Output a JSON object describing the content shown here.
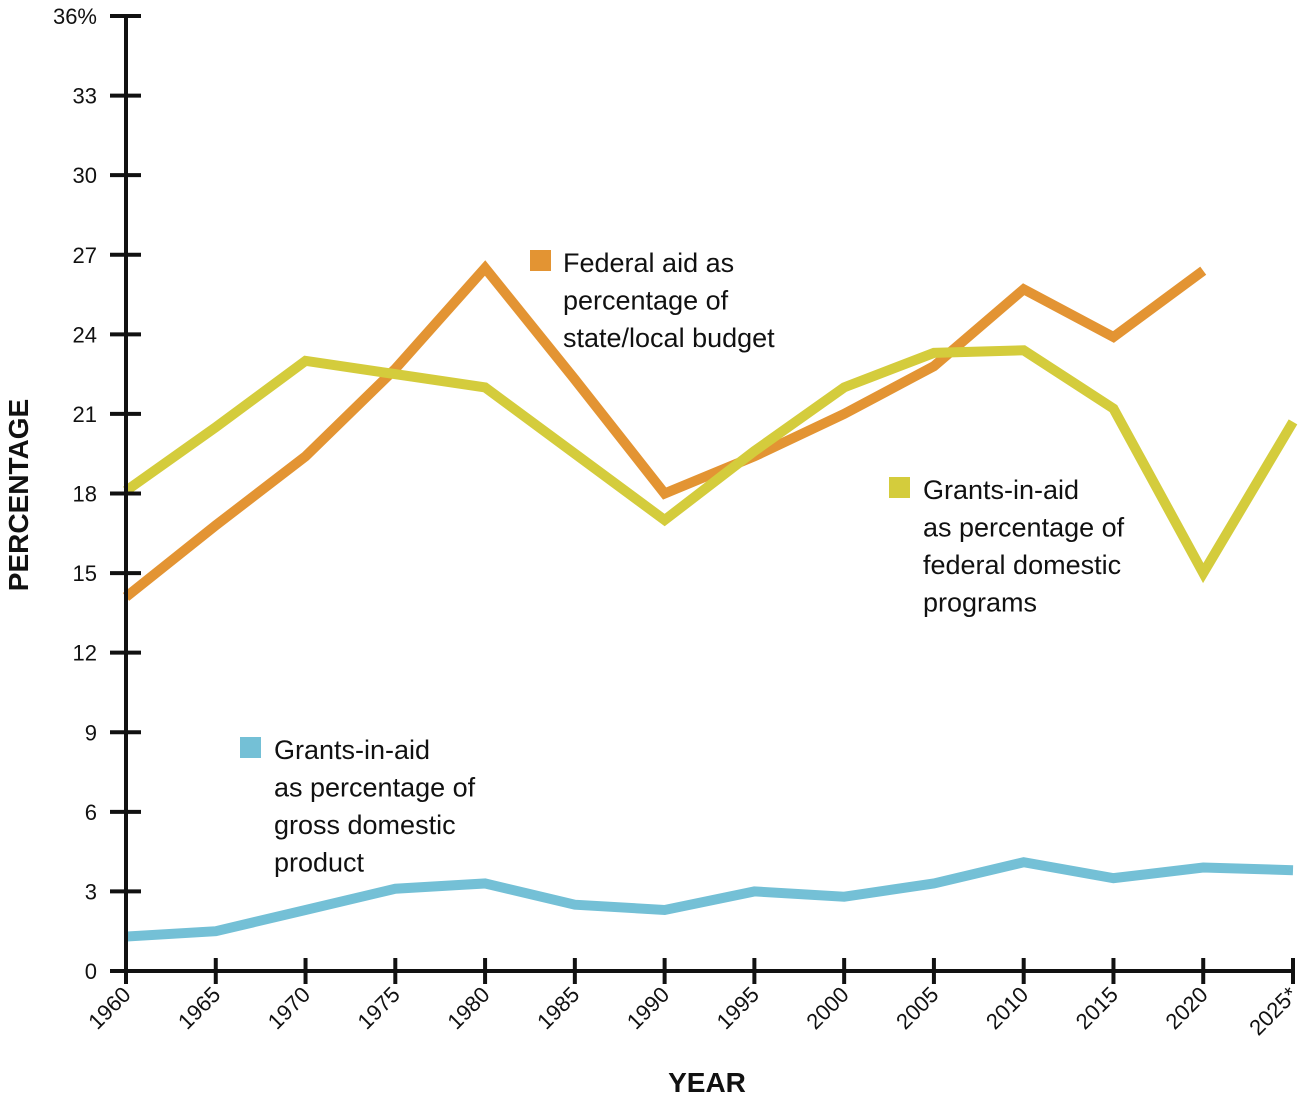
{
  "chart_data": {
    "type": "line",
    "xlabel": "YEAR",
    "ylabel": "PERCENTAGE",
    "ylim": [
      0,
      36
    ],
    "y_ticks": [
      "0",
      "3",
      "6",
      "9",
      "12",
      "15",
      "18",
      "21",
      "24",
      "27",
      "30",
      "33",
      "36%"
    ],
    "x_ticks": [
      "1960",
      "1965",
      "1970",
      "1975",
      "1980",
      "1985",
      "1990",
      "1995",
      "2000",
      "2005",
      "2010",
      "2015",
      "2020",
      "2025*"
    ],
    "x": [
      1960,
      1965,
      1970,
      1975,
      1980,
      1985,
      1990,
      1995,
      2000,
      2005,
      2010,
      2015,
      2020,
      2025
    ],
    "grid": false,
    "series": [
      {
        "name_lines": [
          "Federal aid as",
          "percentage of",
          "state/local budget"
        ],
        "color": "#e39433",
        "values": [
          14.1,
          16.8,
          19.4,
          22.7,
          26.5,
          22.3,
          18.0,
          19.4,
          21.0,
          22.8,
          25.7,
          23.9,
          26.4,
          null
        ]
      },
      {
        "name_lines": [
          "Grants-in-aid",
          "as percentage of",
          "federal domestic",
          "programs"
        ],
        "color": "#d4cc3c",
        "values": [
          18.1,
          20.5,
          23.0,
          22.5,
          22.0,
          19.5,
          17.0,
          19.6,
          22.0,
          23.3,
          23.4,
          21.2,
          15.0,
          20.7
        ]
      },
      {
        "name_lines": [
          "Grants-in-aid",
          "as percentage of",
          "gross domestic",
          "product"
        ],
        "color": "#74c0d6",
        "values": [
          1.3,
          1.5,
          2.3,
          3.1,
          3.3,
          2.5,
          2.3,
          3.0,
          2.8,
          3.3,
          4.1,
          3.5,
          3.9,
          3.8
        ]
      }
    ]
  }
}
